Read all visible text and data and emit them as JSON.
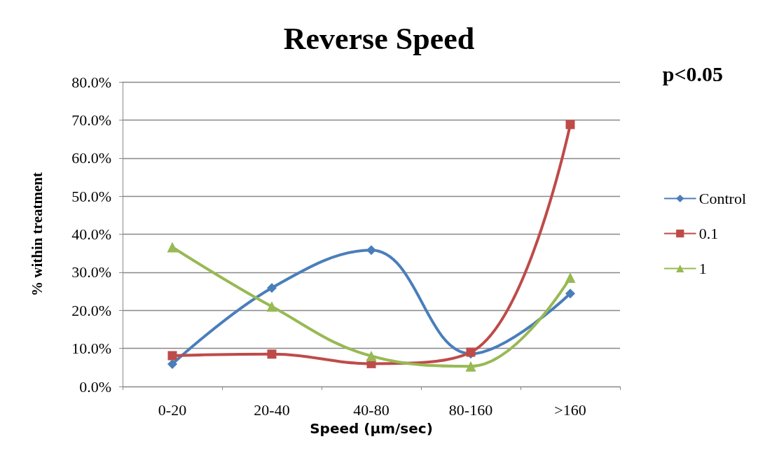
{
  "chart_data": {
    "type": "line",
    "title": "Reverse Speed",
    "xlabel": "Speed (µm/sec)",
    "ylabel": "% within treatment",
    "annotations": [
      "p<0.05"
    ],
    "categories": [
      "0-20",
      "20-40",
      "40-80",
      "80-160",
      ">160"
    ],
    "series": [
      {
        "name": "Control",
        "color": "#4a7ebb",
        "marker": "diamond",
        "values": [
          5.9,
          25.9,
          35.8,
          8.6,
          24.4
        ]
      },
      {
        "name": "0.1",
        "color": "#be4b48",
        "marker": "square",
        "values": [
          8.1,
          8.5,
          6.0,
          9.0,
          68.8
        ]
      },
      {
        "name": "1",
        "color": "#98b954",
        "marker": "triangle",
        "values": [
          36.6,
          21.0,
          8.0,
          5.3,
          28.6
        ]
      }
    ],
    "ylim": [
      0,
      80
    ],
    "yticks": [
      {
        "value": 0,
        "label": "0.0%"
      },
      {
        "value": 10,
        "label": "10.0%"
      },
      {
        "value": 20,
        "label": "20.0%"
      },
      {
        "value": 30,
        "label": "30.0%"
      },
      {
        "value": 40,
        "label": "40.0%"
      },
      {
        "value": 50,
        "label": "50.0%"
      },
      {
        "value": 60,
        "label": "60.0%"
      },
      {
        "value": 70,
        "label": "70.0%"
      },
      {
        "value": 80,
        "label": "80.0%"
      }
    ],
    "grid": "y",
    "legend": "right",
    "line_style": "solid"
  }
}
